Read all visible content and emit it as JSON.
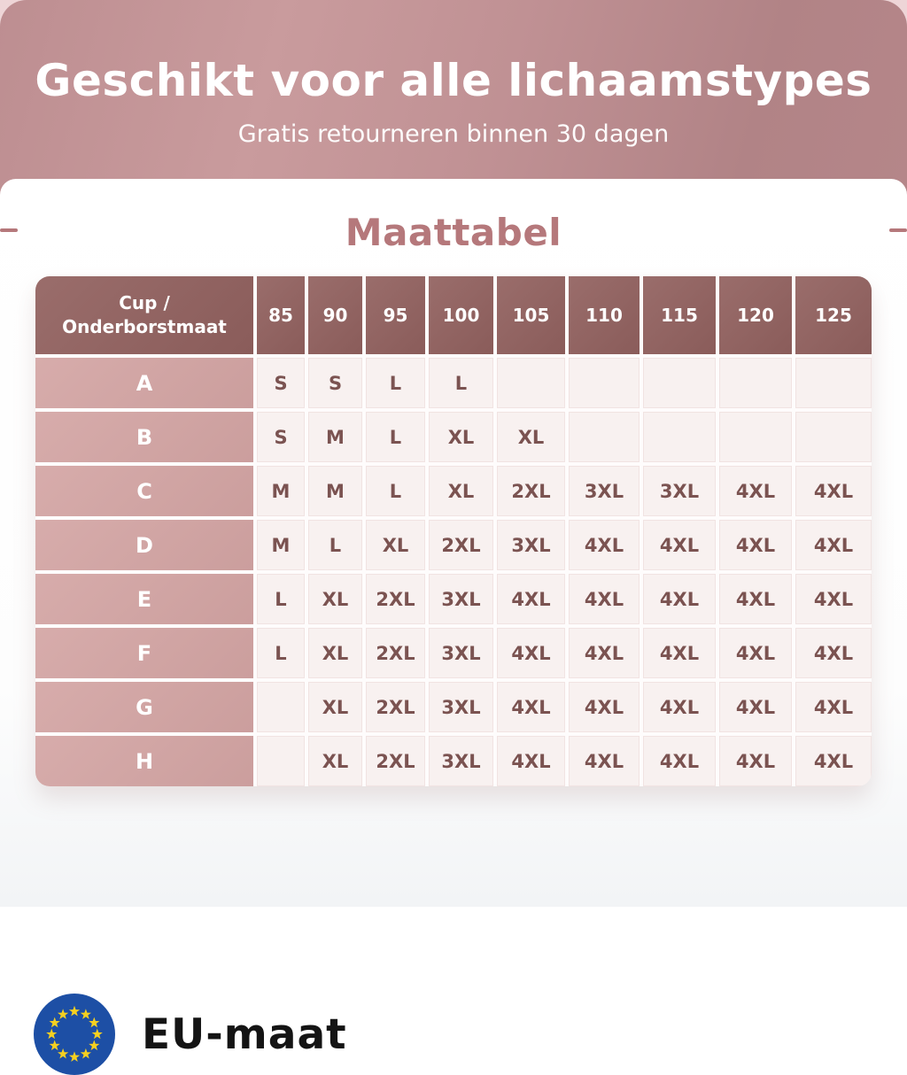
{
  "banner": {
    "title": "Geschikt voor alle lichaamstypes",
    "subtitle": "Gratis retourneren binnen 30 dagen"
  },
  "section": {
    "title": "Maattabel"
  },
  "chart_data": {
    "type": "table",
    "title": "Maattabel",
    "corner_header": [
      "Cup /",
      "Onderborstmaat"
    ],
    "columns": [
      "85",
      "90",
      "95",
      "100",
      "105",
      "110",
      "115",
      "120",
      "125"
    ],
    "rows": [
      {
        "label": "A",
        "values": [
          "S",
          "S",
          "L",
          "L",
          "",
          "",
          "",
          "",
          ""
        ]
      },
      {
        "label": "B",
        "values": [
          "S",
          "M",
          "L",
          "XL",
          "XL",
          "",
          "",
          "",
          ""
        ]
      },
      {
        "label": "C",
        "values": [
          "M",
          "M",
          "L",
          "XL",
          "2XL",
          "3XL",
          "3XL",
          "4XL",
          "4XL"
        ]
      },
      {
        "label": "D",
        "values": [
          "M",
          "L",
          "XL",
          "2XL",
          "3XL",
          "4XL",
          "4XL",
          "4XL",
          "4XL"
        ]
      },
      {
        "label": "E",
        "values": [
          "L",
          "XL",
          "2XL",
          "3XL",
          "4XL",
          "4XL",
          "4XL",
          "4XL",
          "4XL"
        ]
      },
      {
        "label": "F",
        "values": [
          "L",
          "XL",
          "2XL",
          "3XL",
          "4XL",
          "4XL",
          "4XL",
          "4XL",
          "4XL"
        ]
      },
      {
        "label": "G",
        "values": [
          "",
          "XL",
          "2XL",
          "3XL",
          "4XL",
          "4XL",
          "4XL",
          "4XL",
          "4XL"
        ]
      },
      {
        "label": "H",
        "values": [
          "",
          "XL",
          "2XL",
          "3XL",
          "4XL",
          "4XL",
          "4XL",
          "4XL",
          "4XL"
        ]
      }
    ]
  },
  "footer": {
    "label": "EU-maat",
    "flag": "eu-flag-icon"
  },
  "colors": {
    "accent_rose": "#b5787b",
    "banner_gradient_start": "#c99b9d",
    "banner_gradient_end": "#b18386",
    "table_header_bg": "#8e605e",
    "row_label_bg": "#d0a4a3",
    "cell_bg": "#f8f1f0",
    "cell_text": "#7b5351",
    "eu_blue": "#1d4fa5",
    "star_yellow": "#f5d020"
  }
}
